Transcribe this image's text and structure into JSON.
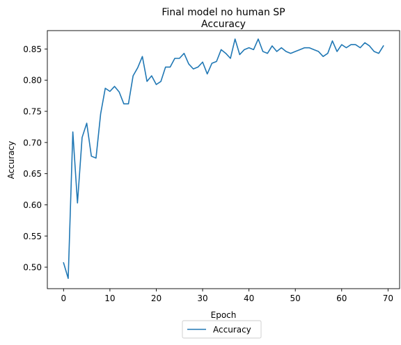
{
  "chart_data": {
    "type": "line",
    "title": "Final model no human SP",
    "subtitle": "Accuracy",
    "xlabel": "Epoch",
    "ylabel": "Accuracy",
    "xlim": [
      -3.5,
      72.5
    ],
    "ylim": [
      0.4655,
      0.8795
    ],
    "xticks": [
      0,
      10,
      20,
      30,
      40,
      50,
      60,
      70
    ],
    "xtick_labels": [
      "0",
      "10",
      "20",
      "30",
      "40",
      "50",
      "60",
      "70"
    ],
    "yticks": [
      0.5,
      0.55,
      0.6,
      0.65,
      0.7,
      0.75,
      0.8,
      0.85
    ],
    "ytick_labels": [
      "0.50",
      "0.55",
      "0.60",
      "0.65",
      "0.70",
      "0.75",
      "0.80",
      "0.85"
    ],
    "grid": false,
    "legend_position": "bottom-center (below axes)",
    "colors": {
      "series": "#1f77b4",
      "axis": "#000000",
      "background": "#ffffff"
    },
    "series": [
      {
        "name": "Accuracy",
        "x": [
          0,
          1,
          2,
          3,
          4,
          5,
          6,
          7,
          8,
          9,
          10,
          11,
          12,
          13,
          14,
          15,
          16,
          17,
          18,
          19,
          20,
          21,
          22,
          23,
          24,
          25,
          26,
          27,
          28,
          29,
          30,
          31,
          32,
          33,
          34,
          35,
          36,
          37,
          38,
          39,
          40,
          41,
          42,
          43,
          44,
          45,
          46,
          47,
          48,
          49,
          50,
          51,
          52,
          53,
          54,
          55,
          56,
          57,
          58,
          59,
          60,
          61,
          62,
          63,
          64,
          65,
          66,
          67,
          68,
          69
        ],
        "y": [
          0.507,
          0.482,
          0.717,
          0.603,
          0.708,
          0.731,
          0.678,
          0.675,
          0.746,
          0.787,
          0.782,
          0.79,
          0.781,
          0.762,
          0.762,
          0.807,
          0.82,
          0.838,
          0.798,
          0.807,
          0.793,
          0.798,
          0.821,
          0.821,
          0.835,
          0.835,
          0.843,
          0.826,
          0.818,
          0.821,
          0.829,
          0.81,
          0.827,
          0.83,
          0.849,
          0.843,
          0.835,
          0.866,
          0.841,
          0.849,
          0.852,
          0.849,
          0.866,
          0.846,
          0.843,
          0.855,
          0.846,
          0.852,
          0.846,
          0.843,
          0.846,
          0.849,
          0.852,
          0.852,
          0.849,
          0.846,
          0.838,
          0.843,
          0.863,
          0.846,
          0.857,
          0.852,
          0.857,
          0.857,
          0.852,
          0.86,
          0.855,
          0.846,
          0.843,
          0.855
        ]
      }
    ]
  }
}
